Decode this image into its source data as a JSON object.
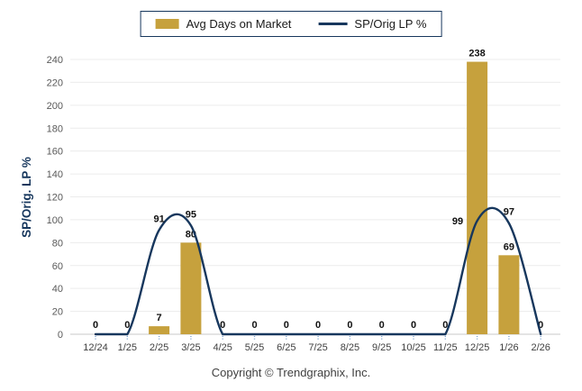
{
  "legend": [
    {
      "label": "Avg Days on Market",
      "type": "bar"
    },
    {
      "label": "SP/Orig LP %",
      "type": "line"
    }
  ],
  "footer": {
    "copyright": "Copyright © Trendgraphix, Inc."
  },
  "colors": {
    "bar": "#C6A13D",
    "line": "#17375D",
    "grid": "#ECECEC",
    "baseline": "#C9C9C9",
    "tick_mark": "#7BA2CF",
    "axis_tick_text": "#595959",
    "x_tick_text": "#404040",
    "data_label_text": "#111111",
    "ylabel_text": "#17375D",
    "legend_border": "#17375D"
  },
  "chart_data": {
    "type": "bar",
    "subtype": "bar+line combo",
    "categories": [
      "12/24",
      "1/25",
      "2/25",
      "3/25",
      "4/25",
      "5/25",
      "6/25",
      "7/25",
      "8/25",
      "9/25",
      "10/25",
      "11/25",
      "12/25",
      "1/26",
      "2/26"
    ],
    "series": [
      {
        "name": "Avg Days on Market",
        "type": "bar",
        "values": [
          0,
          0,
          7,
          80,
          0,
          0,
          0,
          0,
          0,
          0,
          0,
          0,
          238,
          69,
          0
        ]
      },
      {
        "name": "SP/Orig LP %",
        "type": "line",
        "values": [
          0,
          0,
          91,
          95,
          0,
          0,
          0,
          0,
          0,
          0,
          0,
          0,
          99,
          97,
          0
        ]
      }
    ],
    "title": "",
    "xlabel": "",
    "ylabel": "SP/Orig. LP %",
    "ylim": [
      0,
      240
    ],
    "ytick_step": 20,
    "grid": "horizontal",
    "legend_position": "top",
    "line_style": "smooth spline",
    "data_labels": "shown on every point"
  }
}
